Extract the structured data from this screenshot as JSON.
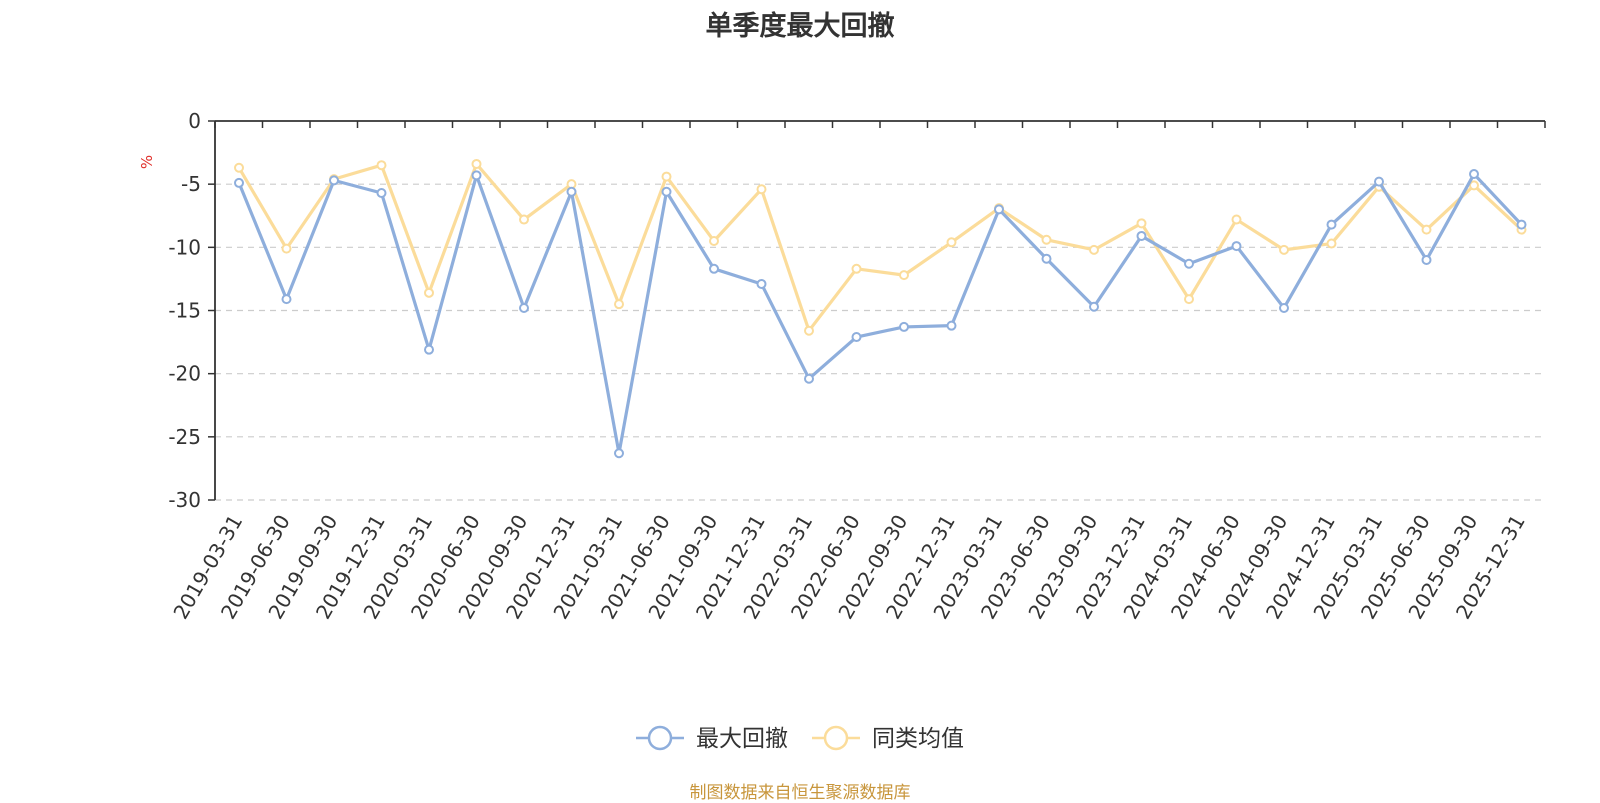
{
  "colors": {
    "series1": "#8EAEDC",
    "series2": "#FBDC9A",
    "unit": "#e0302b",
    "source": "#c8963c",
    "grid": "#cccccc",
    "axis": "#333333"
  },
  "chart_data": {
    "type": "line",
    "title": "单季度最大回撤",
    "ylabel": "%",
    "ylim": [
      -30,
      0
    ],
    "yticks": [
      0,
      -5,
      -10,
      -15,
      -20,
      -25,
      -30
    ],
    "grid": "horizontal dashed",
    "legend_position": "bottom-center",
    "x": [
      "2019-03-31",
      "2019-06-30",
      "2019-09-30",
      "2019-12-31",
      "2020-03-31",
      "2020-06-30",
      "2020-09-30",
      "2020-12-31",
      "2021-03-31",
      "2021-06-30",
      "2021-09-30",
      "2021-12-31",
      "2022-03-31",
      "2022-06-30",
      "2022-09-30",
      "2022-12-31",
      "2023-03-31",
      "2023-06-30",
      "2023-09-30",
      "2023-12-31",
      "2024-03-31",
      "2024-06-30",
      "2024-09-30",
      "2024-12-31",
      "2025-03-31",
      "2025-06-30",
      "2025-09-30",
      "2025-12-31"
    ],
    "series": [
      {
        "name": "最大回撤",
        "values": [
          -4.9,
          -14.1,
          -4.7,
          -5.7,
          -18.1,
          -4.3,
          -14.8,
          -5.6,
          -26.3,
          -5.6,
          -11.7,
          -12.9,
          -20.4,
          -17.1,
          -16.3,
          -16.2,
          -7.0,
          -10.9,
          -14.7,
          -9.1,
          -11.3,
          -9.9,
          -14.8,
          -8.2,
          -4.8,
          -11.0,
          -4.2,
          -8.2
        ]
      },
      {
        "name": "同类均值",
        "values": [
          -3.7,
          -10.1,
          -4.6,
          -3.5,
          -13.6,
          -3.4,
          -7.8,
          -5.0,
          -14.5,
          -4.4,
          -9.5,
          -5.4,
          -16.6,
          -11.7,
          -12.2,
          -9.6,
          -6.9,
          -9.4,
          -10.2,
          -8.1,
          -14.1,
          -7.8,
          -10.2,
          -9.7,
          -5.2,
          -8.6,
          -5.1,
          -8.6
        ]
      }
    ]
  },
  "source_note": "制图数据来自恒生聚源数据库"
}
